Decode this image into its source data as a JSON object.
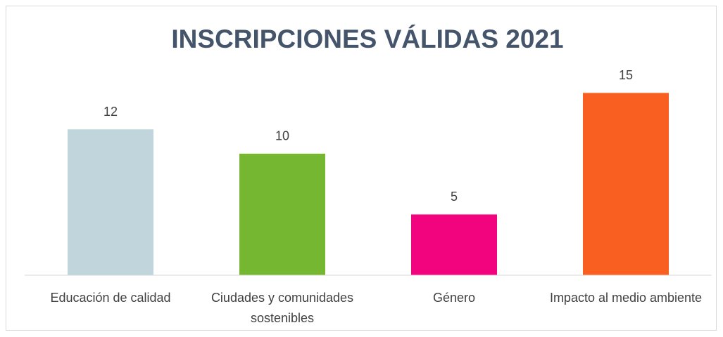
{
  "chart_data": {
    "type": "bar",
    "title": "INSCRIPCIONES VÁLIDAS 2021",
    "categories": [
      "Educación de calidad",
      "Ciudades y comunidades sostenibles",
      "Género",
      "Impacto al medio ambiente"
    ],
    "values": [
      12,
      10,
      5,
      15
    ],
    "colors": [
      "#c0d5dc",
      "#76b732",
      "#f2047f",
      "#fa5f22"
    ],
    "ylim": [
      0,
      16
    ]
  }
}
